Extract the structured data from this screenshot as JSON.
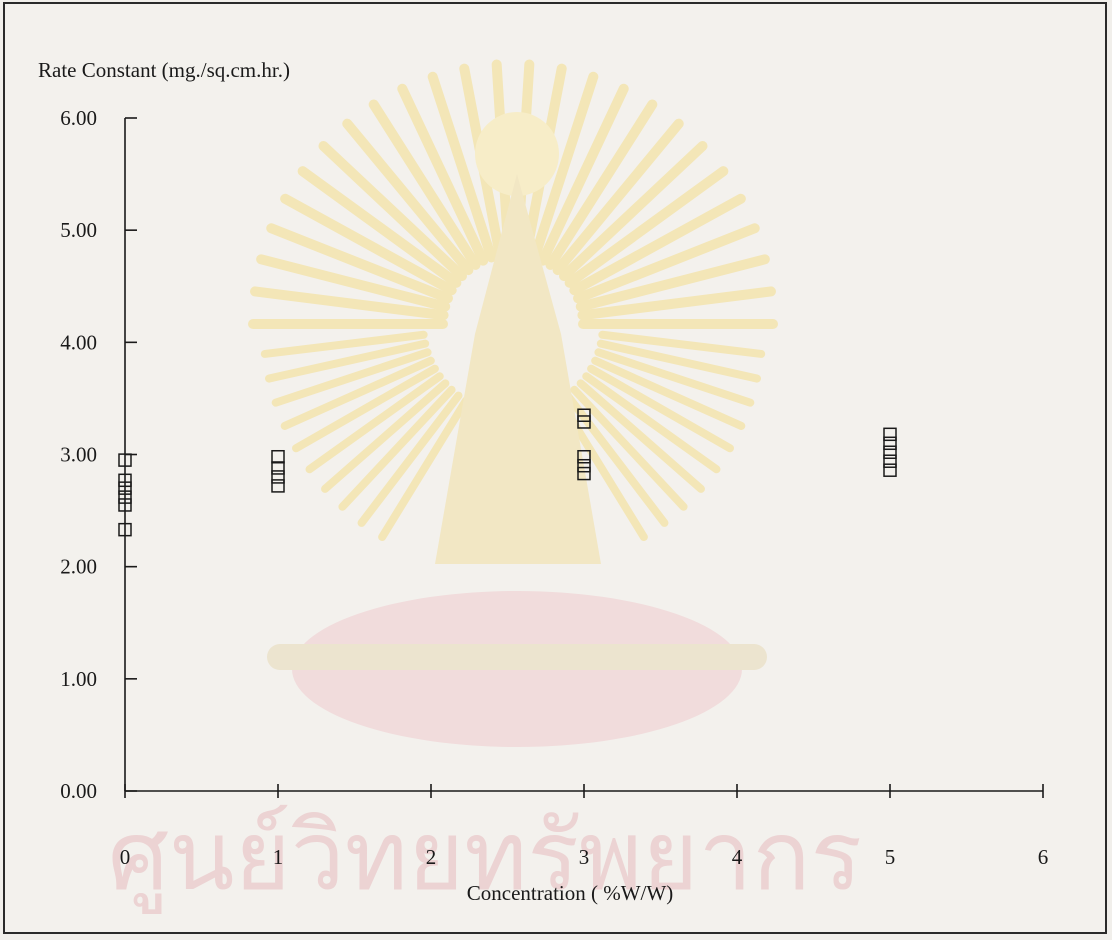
{
  "chart_data": {
    "type": "scatter",
    "title": "",
    "ylabel": "Rate Constant (mg./sq.cm.hr.)",
    "xlabel": "Concentration ( %W/W)",
    "xlim": [
      0,
      6
    ],
    "ylim": [
      0,
      6
    ],
    "x_ticks": [
      0,
      1,
      2,
      3,
      4,
      5,
      6
    ],
    "y_ticks": [
      0,
      1,
      2,
      3,
      4,
      5,
      6
    ],
    "x_tick_labels": [
      "0",
      "1",
      "2",
      "3",
      "4",
      "5",
      "6"
    ],
    "y_tick_labels": [
      "0.00",
      "1.00",
      "2.00",
      "3.00",
      "4.00",
      "5.00",
      "6.00"
    ],
    "marker": "open-square",
    "grid": false,
    "points": [
      {
        "x": 0,
        "y": 2.95
      },
      {
        "x": 0,
        "y": 2.77
      },
      {
        "x": 0,
        "y": 2.7
      },
      {
        "x": 0,
        "y": 2.62
      },
      {
        "x": 0,
        "y": 2.55
      },
      {
        "x": 0,
        "y": 2.33
      },
      {
        "x": 1,
        "y": 2.98
      },
      {
        "x": 1,
        "y": 2.88
      },
      {
        "x": 1,
        "y": 2.8
      },
      {
        "x": 1,
        "y": 2.72
      },
      {
        "x": 3,
        "y": 3.35
      },
      {
        "x": 3,
        "y": 3.29
      },
      {
        "x": 3,
        "y": 2.98
      },
      {
        "x": 3,
        "y": 2.9
      },
      {
        "x": 3,
        "y": 2.83
      },
      {
        "x": 5,
        "y": 3.18
      },
      {
        "x": 5,
        "y": 3.1
      },
      {
        "x": 5,
        "y": 3.02
      },
      {
        "x": 5,
        "y": 2.94
      },
      {
        "x": 5,
        "y": 2.86
      }
    ],
    "background_watermark_text": "ศูนย์วิทยทรัพยากร"
  }
}
